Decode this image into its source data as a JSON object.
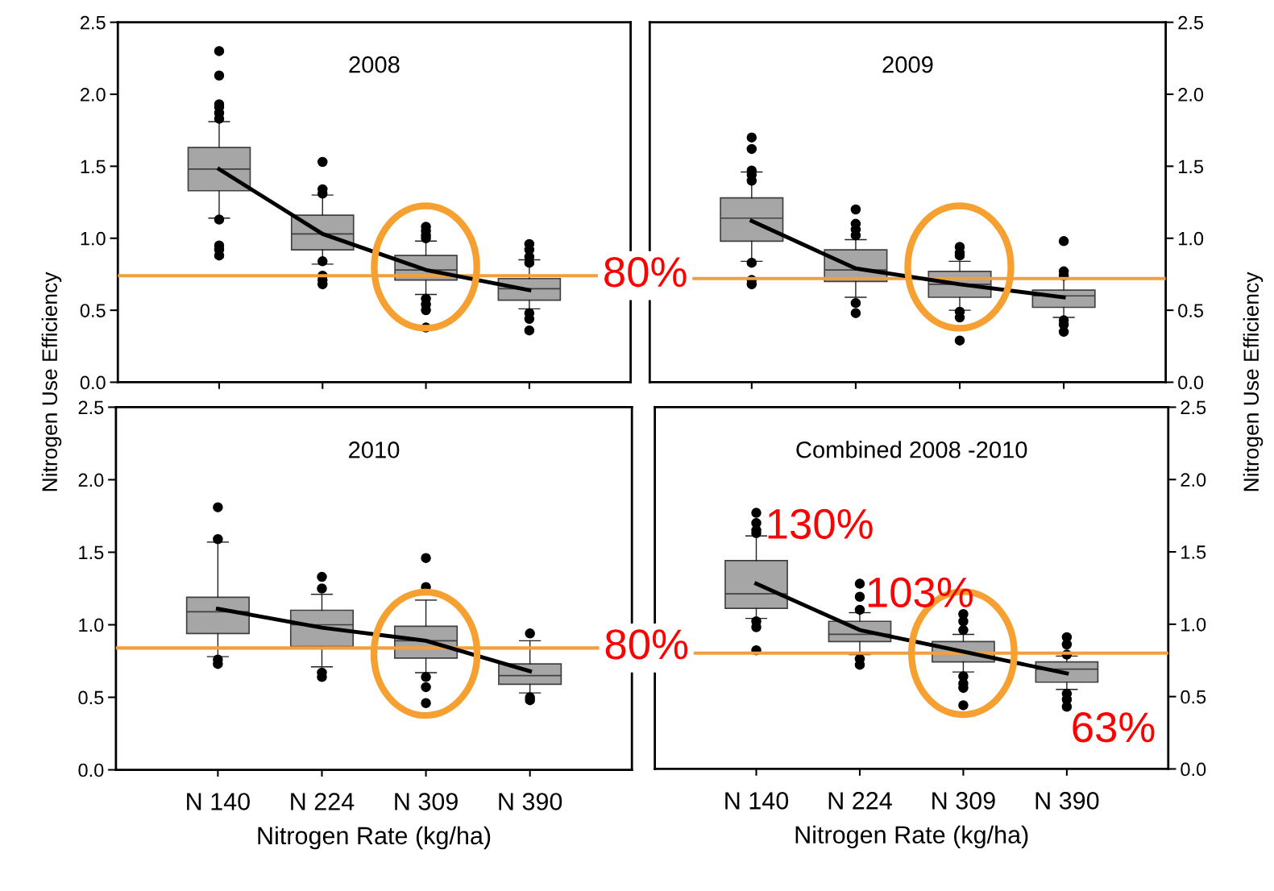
{
  "chart_data": [
    {
      "type": "box",
      "title": "2008",
      "ylabel": "Nitrogen Use Efficiency",
      "categories": [
        null,
        null,
        null,
        null
      ],
      "ylim": [
        0,
        2.5
      ],
      "yticks": [
        {
          "value": 0,
          "label": "0.0"
        },
        0.5,
        {
          "value": 1,
          "label": "1.0"
        },
        1.5,
        {
          "value": 2,
          "label": "2.0"
        },
        2.5
      ],
      "tick_labels": "y",
      "grid": false,
      "series": [
        {
          "type": "box",
          "color": "#a6a6a6",
          "boxes": [
            {
              "low": 1.14,
              "q1": 1.33,
              "median": 1.48,
              "q3": 1.63,
              "high": 1.81,
              "outliers": [
                2.3,
                2.13,
                1.93,
                1.91,
                1.87,
                1.83,
                1.13,
                0.95,
                0.92,
                0.88
              ]
            },
            {
              "low": 0.82,
              "q1": 0.92,
              "median": 1.03,
              "q3": 1.16,
              "high": 1.3,
              "outliers": [
                1.53,
                1.34,
                1.31,
                0.84,
                0.74,
                0.71,
                0.68
              ]
            },
            {
              "low": 0.61,
              "q1": 0.71,
              "median": 0.78,
              "q3": 0.88,
              "high": 0.98,
              "outliers": [
                1.08,
                1.05,
                1.02,
                1.0,
                0.58,
                0.54,
                0.5,
                0.38
              ]
            },
            {
              "low": 0.51,
              "q1": 0.57,
              "median": 0.65,
              "q3": 0.72,
              "high": 0.85,
              "outliers": [
                0.96,
                0.92,
                0.87,
                0.83,
                0.48,
                0.44,
                0.36
              ]
            }
          ]
        },
        {
          "type": "line",
          "color": "#000000",
          "values": [
            1.48,
            1.03,
            0.78,
            0.64
          ]
        }
      ],
      "ref_lines": [
        {
          "axis": "y",
          "value": 0.74,
          "color": "#f0a040"
        }
      ],
      "annotations": [
        "80%"
      ]
    },
    {
      "type": "box",
      "title": "2009",
      "ylabel": "Nitrogen Use Efficiency",
      "categories": [
        null,
        null,
        null,
        null
      ],
      "ylim": [
        0,
        2.5
      ],
      "yticks": [
        {
          "value": 0,
          "label": "0.0"
        },
        0.5,
        {
          "value": 1,
          "label": "1.0"
        },
        1.5,
        {
          "value": 2,
          "label": "2.0"
        },
        2.5
      ],
      "tick_labels": "y",
      "grid": false,
      "series": [
        {
          "type": "box",
          "color": "#a6a6a6",
          "boxes": [
            {
              "low": 0.84,
              "q1": 0.98,
              "median": 1.14,
              "q3": 1.28,
              "high": 1.46,
              "outliers": [
                1.7,
                1.62,
                1.47,
                1.44,
                1.4,
                0.83,
                0.71,
                0.68
              ]
            },
            {
              "low": 0.59,
              "q1": 0.7,
              "median": 0.78,
              "q3": 0.92,
              "high": 0.99,
              "outliers": [
                1.2,
                1.1,
                1.06,
                1.02,
                0.55,
                0.48
              ]
            },
            {
              "low": 0.5,
              "q1": 0.59,
              "median": 0.68,
              "q3": 0.77,
              "high": 0.84,
              "outliers": [
                0.94,
                0.9,
                0.88,
                0.49,
                0.45,
                0.29
              ]
            },
            {
              "low": 0.45,
              "q1": 0.52,
              "median": 0.6,
              "q3": 0.64,
              "high": 0.72,
              "outliers": [
                0.98,
                0.77,
                0.74,
                0.43,
                0.4,
                0.35
              ]
            }
          ]
        },
        {
          "type": "line",
          "color": "#000000",
          "values": [
            1.12,
            0.79,
            0.68,
            0.59
          ]
        }
      ],
      "ref_lines": [
        {
          "axis": "y",
          "value": 0.72,
          "color": "#f0a040"
        }
      ]
    },
    {
      "type": "box",
      "title": "2010",
      "xlabel": "Nitrogen Rate (kg/ha)",
      "categories": [
        "N 140",
        "N 224",
        "N 309",
        "N 390"
      ],
      "ylim": [
        0,
        2.5
      ],
      "yticks": [
        {
          "value": 0,
          "label": "0.0"
        },
        0.5,
        {
          "value": 1,
          "label": "1.0"
        },
        1.5,
        {
          "value": 2,
          "label": "2.0"
        },
        2.5
      ],
      "grid": false,
      "series": [
        {
          "type": "box",
          "color": "#a6a6a6",
          "boxes": [
            {
              "low": 0.78,
              "q1": 0.94,
              "median": 1.09,
              "q3": 1.19,
              "high": 1.57,
              "outliers": [
                1.81,
                1.59,
                0.76,
                0.73
              ]
            },
            {
              "low": 0.71,
              "q1": 0.85,
              "median": 1.0,
              "q3": 1.1,
              "high": 1.21,
              "outliers": [
                1.33,
                1.25,
                0.67,
                0.64
              ]
            },
            {
              "low": 0.67,
              "q1": 0.77,
              "median": 0.89,
              "q3": 0.99,
              "high": 1.17,
              "outliers": [
                1.46,
                1.26,
                0.64,
                0.57,
                0.46
              ]
            },
            {
              "low": 0.53,
              "q1": 0.59,
              "median": 0.65,
              "q3": 0.73,
              "high": 0.89,
              "outliers": [
                0.94,
                0.5,
                0.48
              ]
            }
          ]
        },
        {
          "type": "line",
          "color": "#000000",
          "values": [
            1.11,
            0.98,
            0.89,
            0.68
          ]
        }
      ],
      "ref_lines": [
        {
          "axis": "y",
          "value": 0.84,
          "color": "#f0a040"
        }
      ],
      "annotations": [
        "80%"
      ]
    },
    {
      "type": "box",
      "title": "Combined 2008 -2010",
      "xlabel": "Nitrogen Rate (kg/ha)",
      "categories": [
        "N 140",
        "N 224",
        "N 309",
        "N 390"
      ],
      "ylim": [
        0,
        2.5
      ],
      "yticks": [
        {
          "value": 0,
          "label": "0.0"
        },
        0.5,
        {
          "value": 1,
          "label": "1.0"
        },
        1.5,
        {
          "value": 2,
          "label": "2.0"
        },
        2.5
      ],
      "grid": false,
      "series": [
        {
          "type": "box",
          "color": "#a6a6a6",
          "boxes": [
            {
              "low": 1.04,
              "q1": 1.11,
              "median": 1.21,
              "q3": 1.44,
              "high": 1.61,
              "outliers": [
                1.77,
                1.7,
                1.65,
                1.63,
                1.02,
                0.98,
                0.82
              ]
            },
            {
              "low": 0.79,
              "q1": 0.88,
              "median": 0.93,
              "q3": 1.02,
              "high": 1.08,
              "outliers": [
                1.28,
                1.19,
                1.1,
                0.76,
                0.72
              ]
            },
            {
              "low": 0.67,
              "q1": 0.74,
              "median": 0.8,
              "q3": 0.88,
              "high": 0.93,
              "outliers": [
                1.07,
                1.02,
                0.96,
                0.64,
                0.59,
                0.56,
                0.44
              ]
            },
            {
              "low": 0.55,
              "q1": 0.6,
              "median": 0.69,
              "q3": 0.74,
              "high": 0.78,
              "outliers": [
                0.91,
                0.86,
                0.79,
                0.52,
                0.48,
                0.43
              ]
            }
          ]
        },
        {
          "type": "line",
          "color": "#000000",
          "values": [
            1.28,
            0.96,
            0.81,
            0.66
          ]
        }
      ],
      "ref_lines": [
        {
          "axis": "y",
          "value": 0.8,
          "color": "#f0a040"
        }
      ],
      "annotations": [
        "130%",
        "103%",
        "63%"
      ]
    }
  ]
}
